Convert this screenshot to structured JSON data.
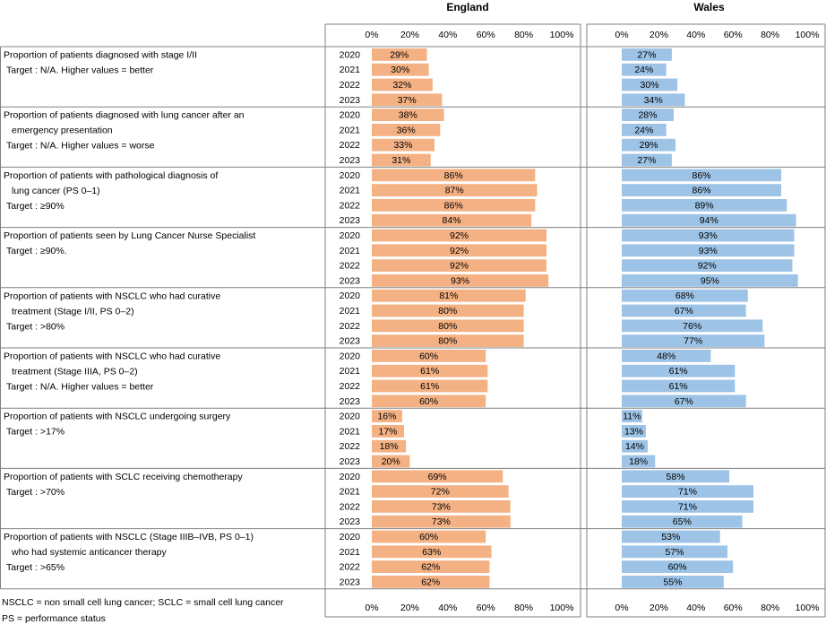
{
  "chart_data": {
    "type": "bar",
    "orientation": "horizontal",
    "panels": [
      "England",
      "Wales"
    ],
    "axis_ticks": [
      "0%",
      "20%",
      "40%",
      "60%",
      "80%",
      "100%"
    ],
    "xlim": [
      0,
      100
    ],
    "unit": "%",
    "years": [
      "2020",
      "2021",
      "2022",
      "2023"
    ],
    "colors": {
      "England": "#F4B183",
      "Wales": "#9DC3E6",
      "border": "#808080"
    },
    "indicators": [
      {
        "lines": [
          "Proportion of patients diagnosed with stage I/II",
          "Target : N/A.  Higher values = better"
        ],
        "england": [
          29,
          30,
          32,
          37
        ],
        "wales": [
          27,
          24,
          30,
          34
        ]
      },
      {
        "lines": [
          "Proportion of patients diagnosed with lung cancer after an",
          "emergency presentation",
          "Target : N/A.  Higher values = worse"
        ],
        "england": [
          38,
          36,
          33,
          31
        ],
        "wales": [
          28,
          24,
          29,
          27
        ]
      },
      {
        "lines": [
          "Proportion of patients with pathological diagnosis of",
          "lung cancer (PS 0–1)",
          "Target : ≥90%"
        ],
        "england": [
          86,
          87,
          86,
          84
        ],
        "wales": [
          86,
          86,
          89,
          94
        ]
      },
      {
        "lines": [
          "Proportion of patients seen by Lung Cancer Nurse Specialist",
          "Target : ≥90%."
        ],
        "england": [
          92,
          92,
          92,
          93
        ],
        "wales": [
          93,
          93,
          92,
          95
        ]
      },
      {
        "lines": [
          "Proportion of patients with NSCLC who had curative",
          "treatment (Stage I/II, PS 0–2)",
          "Target : >80%"
        ],
        "england": [
          81,
          80,
          80,
          80
        ],
        "wales": [
          68,
          67,
          76,
          77
        ]
      },
      {
        "lines": [
          "Proportion of patients with NSCLC who had curative",
          "treatment (Stage IIIA, PS 0–2)",
          "Target : N/A.  Higher values = better"
        ],
        "england": [
          60,
          61,
          61,
          60
        ],
        "wales": [
          48,
          61,
          61,
          67
        ]
      },
      {
        "lines": [
          "Proportion of patients with NSCLC undergoing surgery",
          "Target : >17%"
        ],
        "england": [
          16,
          17,
          18,
          20
        ],
        "wales": [
          11,
          13,
          14,
          18
        ]
      },
      {
        "lines": [
          "Proportion of patients with SCLC receiving chemotherapy",
          "Target : >70%"
        ],
        "england": [
          69,
          72,
          73,
          73
        ],
        "wales": [
          58,
          71,
          71,
          65
        ]
      },
      {
        "lines": [
          "Proportion of patients with NSCLC (Stage IIIB–IVB, PS 0–1)",
          "who had systemic anticancer therapy",
          "Target : >65%"
        ],
        "england": [
          60,
          63,
          62,
          62
        ],
        "wales": [
          53,
          57,
          60,
          55
        ]
      }
    ],
    "footnotes": [
      "NSCLC = non small cell lung cancer; SCLC = small cell lung cancer",
      "PS = performance status"
    ]
  }
}
